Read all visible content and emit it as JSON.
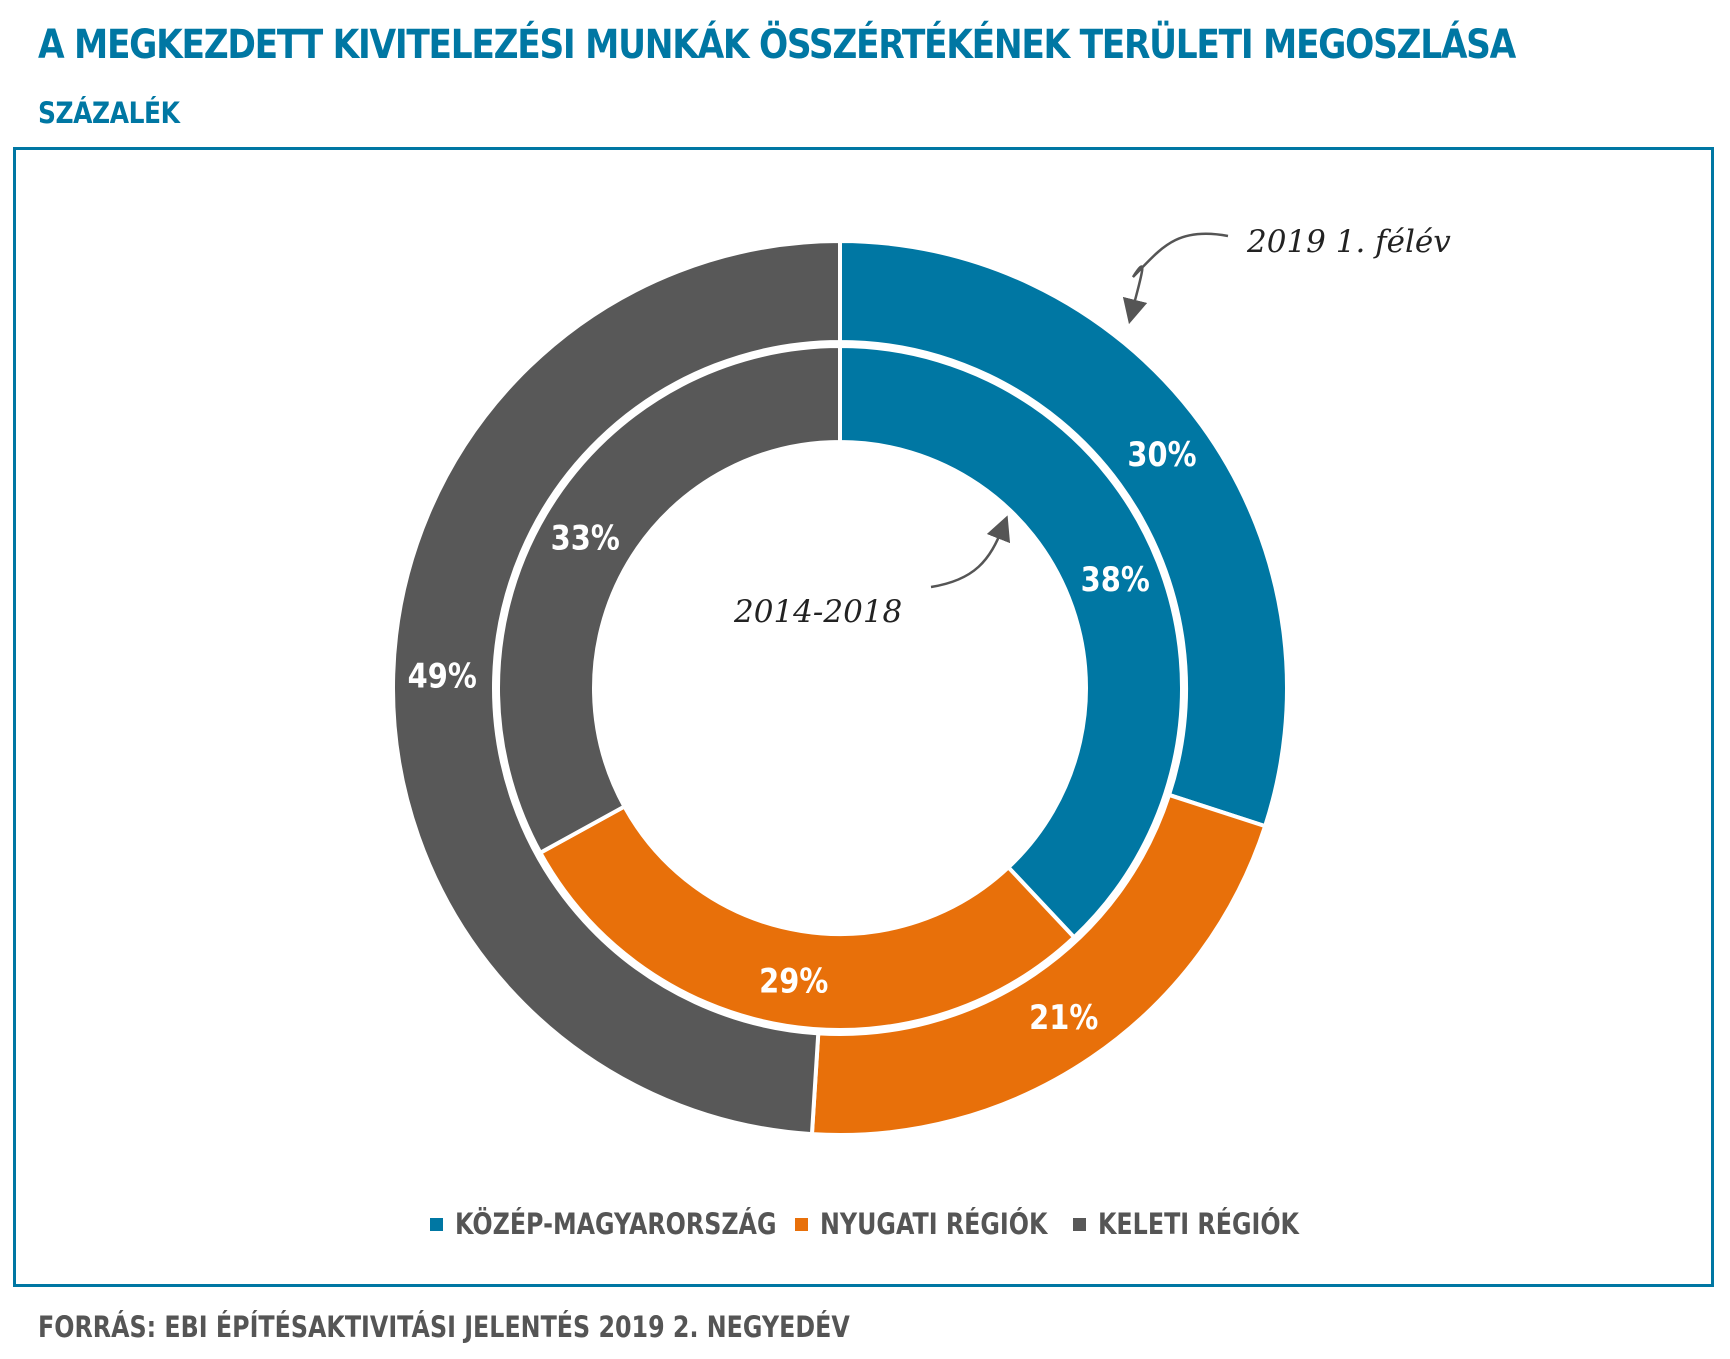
{
  "title": "A MEGKEZDETT KIVITELEZÉSI MUNKÁK ÖSSZÉRTÉKÉNEK TERÜLETI MEGOSZLÁSA",
  "subtitle": "SZÁZALÉK",
  "source": "FORRÁS: EBI ÉPÍTÉSAKTIVITÁSI JELENTÉS 2019 2. NEGYEDÉV",
  "colors": {
    "accent": "#0077a3",
    "kozep": "#0077a3",
    "nyugati": "#e8700a",
    "keleti": "#585858",
    "text_gray": "#555555"
  },
  "chart_data": {
    "type": "pie",
    "subtype": "nested-donut",
    "categories": [
      "KÖZÉP-MAGYARORSZÁG",
      "NYUGATI RÉGIÓK",
      "KELETI RÉGIÓK"
    ],
    "series": [
      {
        "name": "2019 1. félév",
        "ring": "outer",
        "values": [
          30,
          21,
          49
        ],
        "labels": [
          "30%",
          "21%",
          "49%"
        ]
      },
      {
        "name": "2014-2018",
        "ring": "inner",
        "values": [
          38,
          29,
          33
        ],
        "labels": [
          "38%",
          "29%",
          "33%"
        ]
      }
    ],
    "annotations": [
      "2019 1. félév",
      "2014-2018"
    ],
    "legend": {
      "position": "bottom",
      "entries": [
        "KÖZÉP-MAGYARORSZÁG",
        "NYUGATI RÉGIÓK",
        "KELETI RÉGIÓK"
      ]
    }
  }
}
